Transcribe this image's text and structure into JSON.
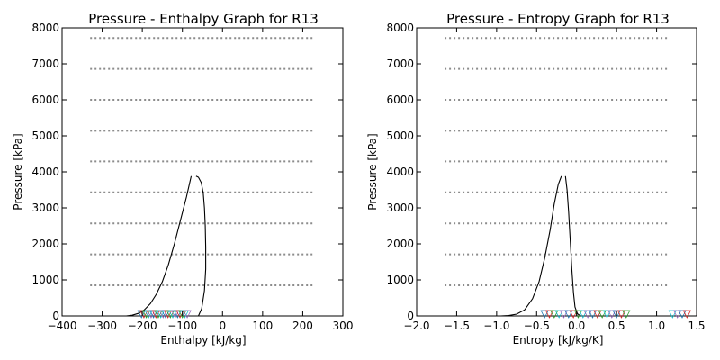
{
  "chart_data": [
    {
      "type": "line",
      "title": "Pressure - Enthalpy Graph for R13",
      "xlabel": "Enthalpy [kJ/kg]",
      "ylabel": "Pressure [kPa]",
      "xlim": [
        -400,
        300
      ],
      "ylim": [
        0,
        8000
      ],
      "xticks": [
        -400,
        -300,
        -200,
        -100,
        0,
        100,
        200,
        300
      ],
      "xtick_labels": [
        "−400",
        "−300",
        "−200",
        "−100",
        "0",
        "100",
        "200",
        "300"
      ],
      "yticks": [
        0,
        1000,
        2000,
        3000,
        4000,
        5000,
        6000,
        7000,
        8000
      ],
      "ytick_labels": [
        "0",
        "1000",
        "2000",
        "3000",
        "4000",
        "5000",
        "6000",
        "7000",
        "8000"
      ],
      "grid": false,
      "isobar_levels": [
        850,
        1710,
        2570,
        3430,
        4290,
        5140,
        6000,
        6860,
        7720
      ],
      "isobar_x_range": [
        -330,
        230
      ],
      "series": [
        {
          "role": "saturated-liquid",
          "x": [
            -240,
            -225,
            -210,
            -195,
            -180,
            -165,
            -150,
            -135,
            -120,
            -105,
            -90,
            -78
          ],
          "y": [
            0,
            20,
            70,
            170,
            340,
            600,
            950,
            1420,
            2000,
            2650,
            3300,
            3880
          ]
        },
        {
          "role": "saturated-vapor",
          "x": [
            -60,
            -52,
            -45,
            -42,
            -42,
            -43,
            -45,
            -48,
            -53,
            -60,
            -66
          ],
          "y": [
            0,
            200,
            700,
            1300,
            1900,
            2500,
            3000,
            3400,
            3700,
            3850,
            3880
          ]
        }
      ],
      "markers": {
        "shape": "v",
        "x": [
          -202,
          -196,
          -190,
          -184,
          -178,
          -172,
          -166,
          -160,
          -154,
          -148,
          -142,
          -136,
          -130,
          -124,
          -118,
          -112,
          -106,
          -100,
          -94,
          -88
        ],
        "y": 50,
        "colors": [
          "#1f77b4",
          "#d62728",
          "#2ca02c",
          "#17becf",
          "#9467bd"
        ]
      }
    },
    {
      "type": "line",
      "title": "Pressure - Entropy Graph for R13",
      "xlabel": "Entropy [kJ/kg/K]",
      "ylabel": "Pressure [kPa]",
      "xlim": [
        -2.0,
        1.5
      ],
      "ylim": [
        0,
        8000
      ],
      "xticks": [
        -2.0,
        -1.5,
        -1.0,
        -0.5,
        0.0,
        0.5,
        1.0,
        1.5
      ],
      "xtick_labels": [
        "−2.0",
        "−1.5",
        "−1.0",
        "−0.5",
        "0.0",
        "0.5",
        "1.0",
        "1.5"
      ],
      "yticks": [
        0,
        1000,
        2000,
        3000,
        4000,
        5000,
        6000,
        7000,
        8000
      ],
      "ytick_labels": [
        "0",
        "1000",
        "2000",
        "3000",
        "4000",
        "5000",
        "6000",
        "7000",
        "8000"
      ],
      "grid": false,
      "isobar_levels": [
        850,
        1710,
        2570,
        3430,
        4290,
        5140,
        6000,
        6860,
        7720
      ],
      "isobar_x_range": [
        -1.65,
        1.15
      ],
      "series": [
        {
          "role": "saturated-liquid",
          "x": [
            -0.95,
            -0.85,
            -0.75,
            -0.65,
            -0.55,
            -0.47,
            -0.4,
            -0.33,
            -0.28,
            -0.23,
            -0.19
          ],
          "y": [
            0,
            10,
            50,
            170,
            480,
            950,
            1600,
            2400,
            3100,
            3650,
            3880
          ]
        },
        {
          "role": "saturated-vapor",
          "x": [
            0.05,
            0.01,
            -0.02,
            -0.04,
            -0.06,
            -0.08,
            -0.1,
            -0.12,
            -0.14
          ],
          "y": [
            0,
            60,
            250,
            650,
            1300,
            2100,
            2900,
            3500,
            3880
          ]
        }
      ],
      "markers": {
        "shape": "v",
        "x": [
          -0.4,
          -0.34,
          -0.28,
          -0.22,
          -0.16,
          -0.1,
          -0.04,
          0.02,
          0.08,
          0.14,
          0.2,
          0.26,
          0.32,
          0.38,
          0.44,
          0.5,
          0.56,
          0.62,
          1.2,
          1.26,
          1.32,
          1.38
        ],
        "y": 50,
        "colors": [
          "#1f77b4",
          "#d62728",
          "#2ca02c",
          "#17becf",
          "#9467bd"
        ]
      }
    }
  ]
}
